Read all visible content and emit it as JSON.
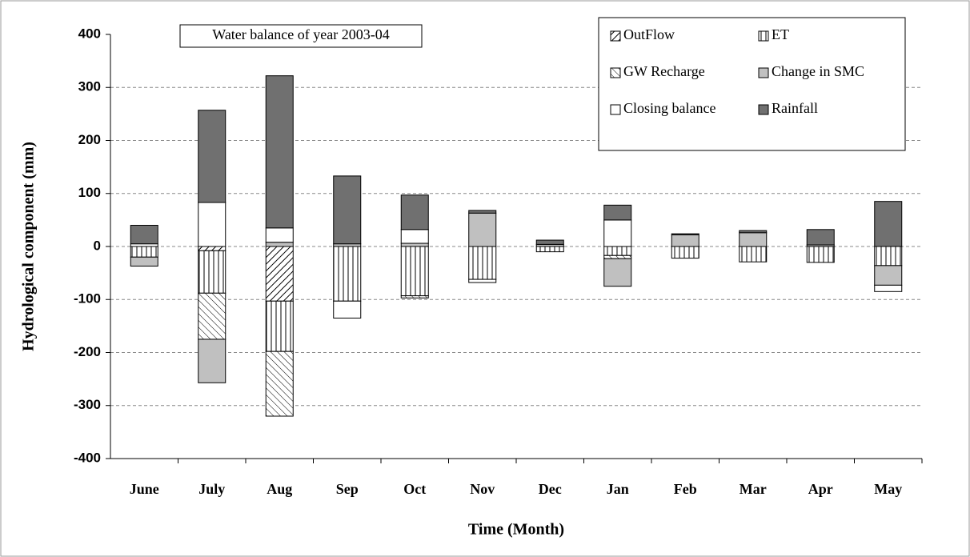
{
  "chart_data": {
    "type": "stacked-bar",
    "title": "Water balance of year 2003-04",
    "x_label": "Time (Month)",
    "y_label": "Hydrological component (mm)",
    "categories": [
      "June",
      "July",
      "Aug",
      "Sep",
      "Oct",
      "Nov",
      "Dec",
      "Jan",
      "Feb",
      "Mar",
      "Apr",
      "May"
    ],
    "series": [
      {
        "name": "OutFlow",
        "color": "#ffffff",
        "hatch": "diagonal",
        "values": [
          0,
          -8,
          -103,
          0,
          0,
          0,
          0,
          0,
          0,
          0,
          0,
          0
        ]
      },
      {
        "name": "ET",
        "color": "#ffffff",
        "hatch": "vertical",
        "values": [
          -20,
          -80,
          -95,
          -103,
          -93,
          -62,
          -10,
          -17,
          -22,
          -29,
          -30,
          -36
        ]
      },
      {
        "name": "GW Recharge",
        "color": "#ffffff",
        "hatch": "backdiagonal",
        "values": [
          0,
          -87,
          -122,
          0,
          -4,
          0,
          0,
          -6,
          0,
          0,
          0,
          0
        ]
      },
      {
        "name": "Change in SMC",
        "color": "#c0c0c0",
        "hatch": null,
        "values": [
          -17,
          -82,
          8,
          5,
          6,
          63,
          4,
          -52,
          22,
          26,
          3,
          -37
        ]
      },
      {
        "name": "Closing balance",
        "color": "#ffffff",
        "hatch": null,
        "values": [
          5,
          83,
          27,
          -32,
          26,
          -6,
          0,
          50,
          0,
          0,
          0,
          -12
        ]
      },
      {
        "name": "Rainfall",
        "color": "#707070",
        "hatch": null,
        "values": [
          35,
          174,
          287,
          128,
          65,
          5,
          8,
          28,
          2,
          4,
          29,
          85
        ]
      }
    ],
    "ylim": [
      -400,
      400
    ],
    "yticks": [
      -400,
      -300,
      -200,
      -100,
      0,
      100,
      200,
      300,
      400
    ],
    "grid": true,
    "legend": "top-right"
  }
}
